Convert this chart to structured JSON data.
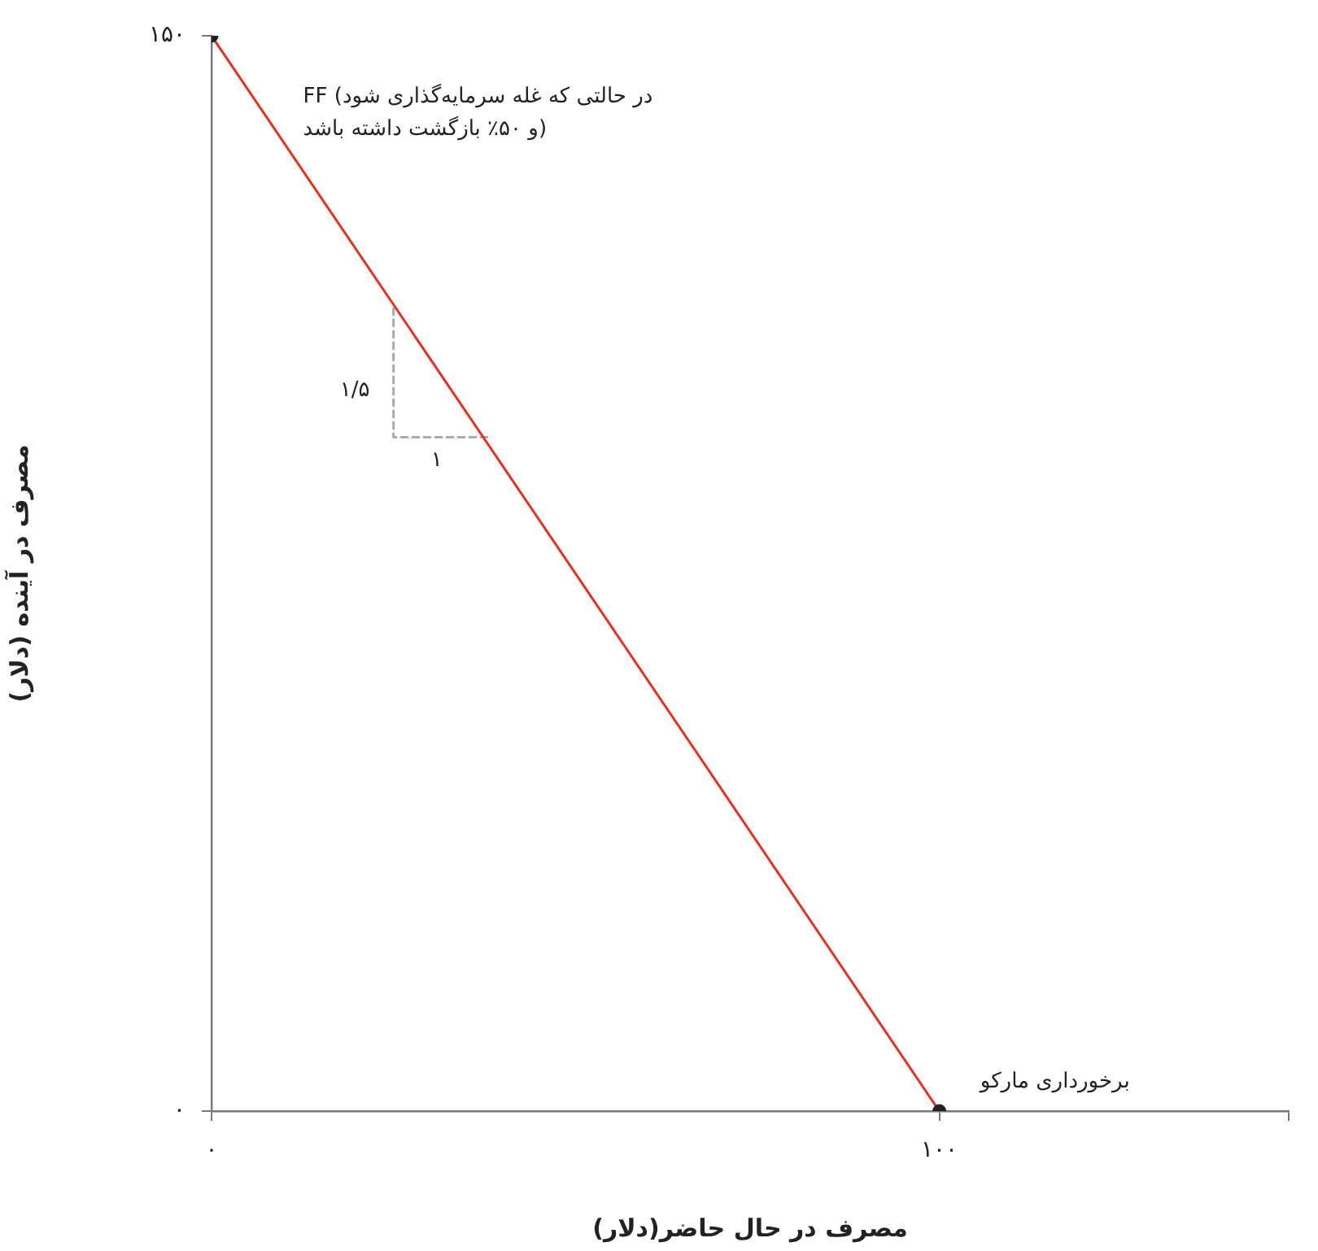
{
  "chart_data": {
    "type": "line",
    "xlabel": "مصرف در حال حاضر(دلار)",
    "ylabel": "مصرف در آینده (دلار)",
    "xlim": [
      0,
      148
    ],
    "xticks": [
      {
        "value": 0,
        "label": "۰"
      },
      {
        "value": 100,
        "label": "۱۰۰"
      },
      {
        "value": 148,
        "label": null
      }
    ],
    "ylim": [
      0,
      150
    ],
    "yticks": [
      {
        "value": 0,
        "label": "۰"
      },
      {
        "value": 150,
        "label": "۱۵۰"
      }
    ],
    "grid": false,
    "legend": false,
    "series": [
      {
        "color": "#e8301c",
        "x": [
          0,
          100
        ],
        "values": [
          150,
          0
        ],
        "marker": "circle",
        "line_style": "solid"
      },
      {
        "color": "#aaaaaa",
        "x": [
          25,
          25,
          38
        ],
        "values": [
          112,
          94,
          94
        ],
        "marker": "none",
        "line_style": "dashed"
      }
    ],
    "annotations": [
      "FF (در حالتی که غله سرمایه‌گذاری شود\nو ۵۰٪ بازگشت داشته باشد)",
      "۱/۵",
      "۱",
      "برخورداری مارکو"
    ]
  }
}
